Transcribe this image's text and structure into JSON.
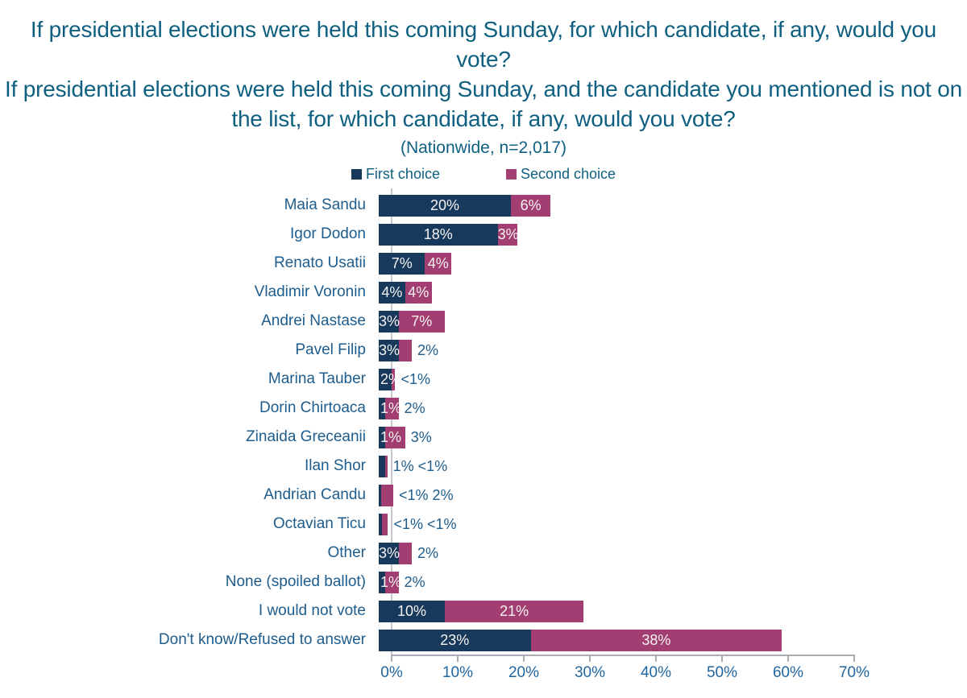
{
  "title": {
    "question1": "If presidential elections were held this coming Sunday, for which candidate, if any, would you vote?",
    "question2": "If presidential elections were held this coming Sunday, and the candidate you mentioned is not on the list, for which candidate, if any, would you vote?",
    "subtitle": "(Nationwide, n=2,017)"
  },
  "legend": {
    "first": "First choice",
    "second": "Second choice"
  },
  "colors": {
    "first_choice": "#17395C",
    "second_choice": "#A23E72",
    "title_text": "#0E5F80",
    "label_text": "#1D5C8C",
    "axis_text": "#1F66A0",
    "axis_line": "#ABABB3",
    "bar_value_text": "#FFFFFF"
  },
  "chart_data": {
    "type": "bar",
    "orientation": "horizontal",
    "stacked": true,
    "title": "If presidential elections were held this coming Sunday, for which candidate, if any, would you vote? / If presidential elections were held this coming Sunday, and the candidate you mentioned is not on the list, for which candidate, if any, would you vote? (Nationwide, n=2,017)",
    "legend_position": "top",
    "xlim": [
      0,
      70
    ],
    "xticks": [
      "0%",
      "10%",
      "20%",
      "30%",
      "40%",
      "50%",
      "60%",
      "70%"
    ],
    "categories": [
      "Maia Sandu",
      "Igor Dodon",
      "Renato Usatii",
      "Vladimir Voronin",
      "Andrei Nastase",
      "Pavel Filip",
      "Marina Tauber",
      "Dorin Chirtoaca",
      "Zinaida Greceanii",
      "Ilan Shor",
      "Andrian Candu",
      "Octavian Ticu",
      "Other",
      "None (spoiled ballot)",
      "I would not vote",
      "Don't know/Refused to answer"
    ],
    "series": [
      {
        "name": "First choice",
        "labels": [
          "20%",
          "18%",
          "7%",
          "4%",
          "3%",
          "3%",
          "2%",
          "1%",
          "1%",
          "1%",
          "<1%",
          "<1%",
          "3%",
          "1%",
          "10%",
          "23%"
        ],
        "values": [
          20,
          18,
          7,
          4,
          3,
          3,
          2,
          1,
          1,
          1,
          0.5,
          0.5,
          3,
          1,
          10,
          23
        ]
      },
      {
        "name": "Second choice",
        "labels": [
          "6%",
          "3%",
          "4%",
          "4%",
          "7%",
          "2%",
          "<1%",
          "2%",
          "3%",
          "<1%",
          "2%",
          "<1%",
          "2%",
          "2%",
          "21%",
          "38%"
        ],
        "values": [
          6,
          3,
          4,
          4,
          7,
          2,
          0.5,
          2,
          3,
          0.5,
          2,
          0.5,
          2,
          2,
          21,
          38
        ]
      }
    ],
    "rows": [
      {
        "category": "Maia Sandu",
        "v1": 20,
        "v2": 6,
        "l1": "20%",
        "l2": "6%",
        "p1": "in",
        "p2": "in"
      },
      {
        "category": "Igor Dodon",
        "v1": 18,
        "v2": 3,
        "l1": "18%",
        "l2": "3%",
        "p1": "in",
        "p2": "in"
      },
      {
        "category": "Renato Usatii",
        "v1": 7,
        "v2": 4,
        "l1": "7%",
        "l2": "4%",
        "p1": "in",
        "p2": "in"
      },
      {
        "category": "Vladimir Voronin",
        "v1": 4,
        "v2": 4,
        "l1": "4%",
        "l2": "4%",
        "p1": "in",
        "p2": "in"
      },
      {
        "category": "Andrei Nastase",
        "v1": 3,
        "v2": 7,
        "l1": "3%",
        "l2": "7%",
        "p1": "in",
        "p2": "in"
      },
      {
        "category": "Pavel Filip",
        "v1": 3,
        "v2": 2,
        "l1": "3%",
        "l2": "2%",
        "p1": "in",
        "p2": "out"
      },
      {
        "category": "Marina Tauber",
        "v1": 2,
        "v2": 0.5,
        "l1": "2%",
        "l2": "<1%",
        "p1": "in",
        "p2": "out"
      },
      {
        "category": "Dorin Chirtoaca",
        "v1": 1,
        "v2": 2,
        "l1": "1%",
        "l2": "2%",
        "p1": "in",
        "p2": "out"
      },
      {
        "category": "Zinaida Greceanii",
        "v1": 1,
        "v2": 3,
        "l1": "1%",
        "l2": "3%",
        "p1": "in",
        "p2": "out"
      },
      {
        "category": "Ilan Shor",
        "v1": 1,
        "v2": 0.3,
        "l1": "1%",
        "l2": "<1%",
        "p1": "out",
        "p2": "out"
      },
      {
        "category": "Andrian Candu",
        "v1": 0.4,
        "v2": 1.8,
        "l1": "<1%",
        "l2": "2%",
        "p1": "out",
        "p2": "out"
      },
      {
        "category": "Octavian Ticu",
        "v1": 0.5,
        "v2": 0.9,
        "l1": "<1%",
        "l2": "<1%",
        "p1": "out",
        "p2": "out"
      },
      {
        "category": "Other",
        "v1": 3,
        "v2": 2,
        "l1": "3%",
        "l2": "2%",
        "p1": "in",
        "p2": "out"
      },
      {
        "category": "None (spoiled ballot)",
        "v1": 1,
        "v2": 2,
        "l1": "1%",
        "l2": "2%",
        "p1": "in",
        "p2": "out"
      },
      {
        "category": "I would not vote",
        "v1": 10,
        "v2": 21,
        "l1": "10%",
        "l2": "21%",
        "p1": "in",
        "p2": "in"
      },
      {
        "category": "Don't know/Refused to answer",
        "v1": 23,
        "v2": 38,
        "l1": "23%",
        "l2": "38%",
        "p1": "in",
        "p2": "in"
      }
    ]
  }
}
